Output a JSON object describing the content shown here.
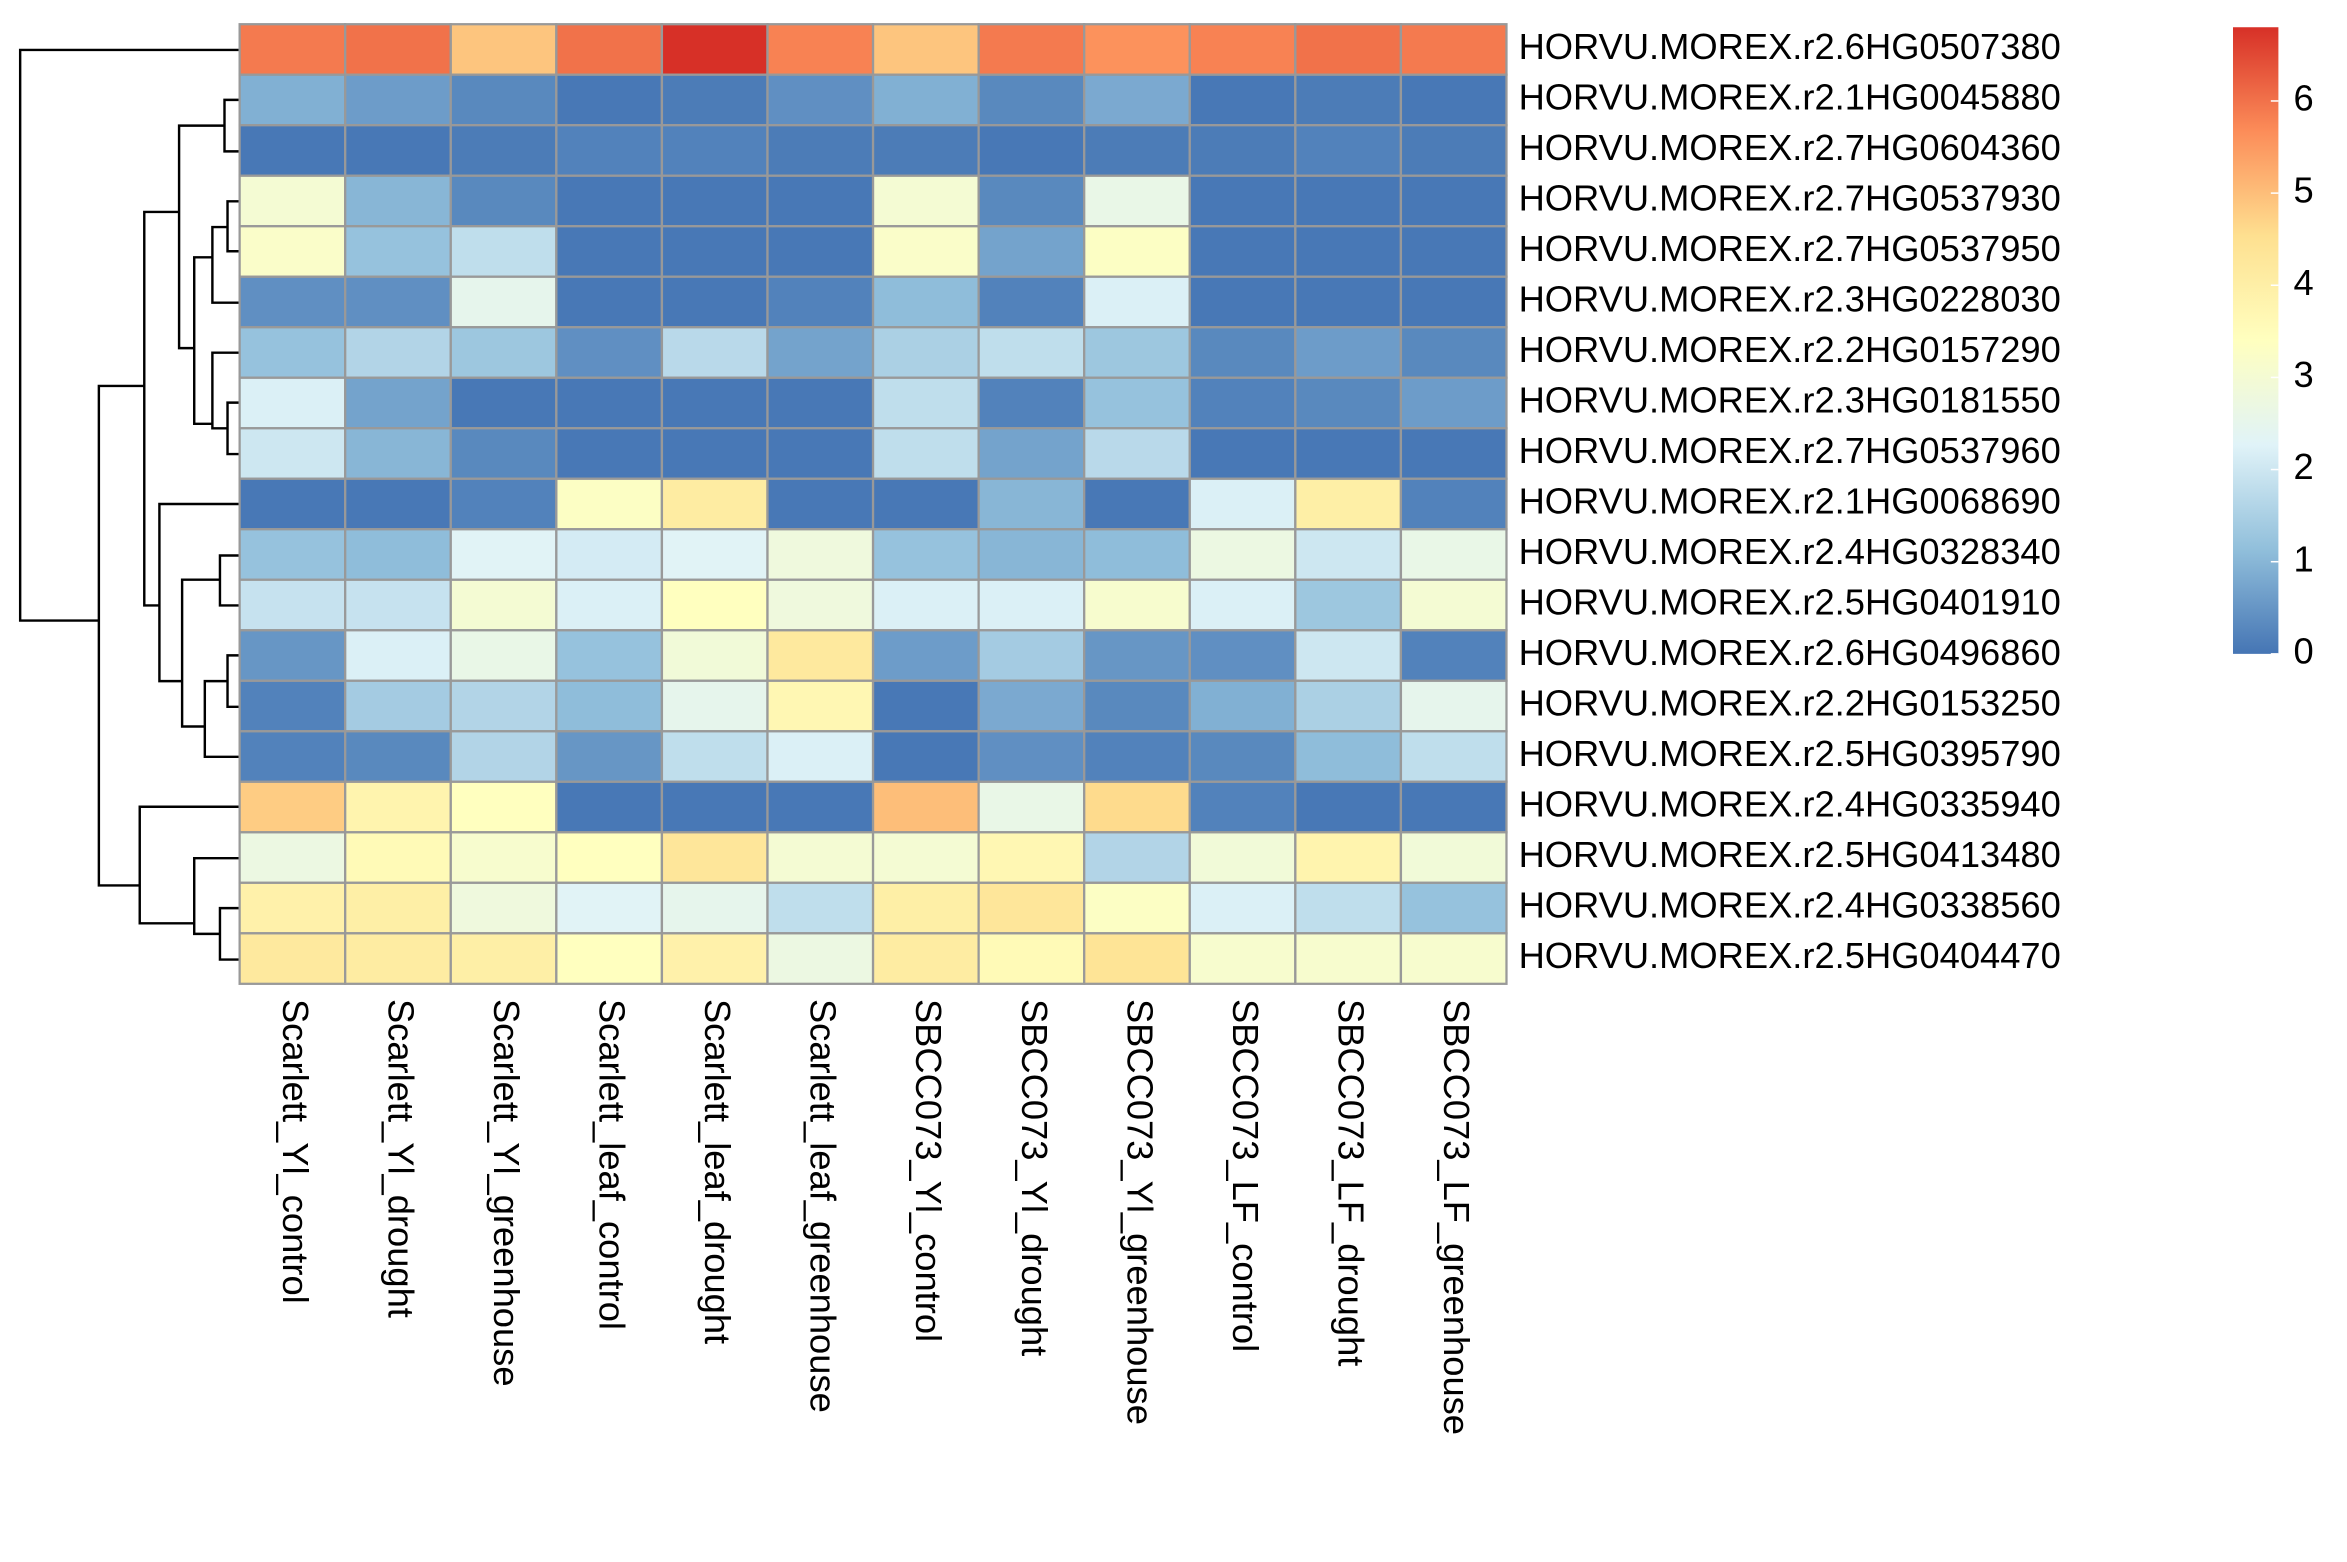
{
  "chart_data": {
    "type": "heatmap",
    "rows": [
      "HORVU.MOREX.r2.6HG0507380",
      "HORVU.MOREX.r2.1HG0045880",
      "HORVU.MOREX.r2.7HG0604360",
      "HORVU.MOREX.r2.7HG0537930",
      "HORVU.MOREX.r2.7HG0537950",
      "HORVU.MOREX.r2.3HG0228030",
      "HORVU.MOREX.r2.2HG0157290",
      "HORVU.MOREX.r2.3HG0181550",
      "HORVU.MOREX.r2.7HG0537960",
      "HORVU.MOREX.r2.1HG0068690",
      "HORVU.MOREX.r2.4HG0328340",
      "HORVU.MOREX.r2.5HG0401910",
      "HORVU.MOREX.r2.6HG0496860",
      "HORVU.MOREX.r2.2HG0153250",
      "HORVU.MOREX.r2.5HG0395790",
      "HORVU.MOREX.r2.4HG0335940",
      "HORVU.MOREX.r2.5HG0413480",
      "HORVU.MOREX.r2.4HG0338560",
      "HORVU.MOREX.r2.5HG0404470"
    ],
    "columns": [
      "Scarlett_Yl_control",
      "Scarlett_Yl_drought",
      "Scarlett_Yl_greenhouse",
      "Scarlett_leaf_control",
      "Scarlett_leaf_drought",
      "Scarlett_leaf_greenhouse",
      "SBCC073_Yl_control",
      "SBCC073_Yl_drought",
      "SBCC073_Yl_greenhouse",
      "SBCC073_LF_control",
      "SBCC073_LF_drought",
      "SBCC073_LF_greenhouse"
    ],
    "values": [
      [
        5.9,
        6.0,
        4.9,
        6.0,
        6.8,
        5.8,
        4.9,
        5.9,
        5.6,
        5.8,
        6.0,
        5.9
      ],
      [
        0.9,
        0.6,
        0.3,
        0.05,
        0.1,
        0.4,
        0.9,
        0.3,
        0.8,
        0.05,
        0.1,
        0.05
      ],
      [
        0.05,
        0.05,
        0.1,
        0.2,
        0.2,
        0.1,
        0.1,
        0.05,
        0.1,
        0.1,
        0.2,
        0.1
      ],
      [
        3.0,
        1.0,
        0.3,
        0.05,
        0.05,
        0.05,
        3.0,
        0.3,
        2.6,
        0.05,
        0.05,
        0.05
      ],
      [
        3.2,
        1.2,
        1.8,
        0.05,
        0.05,
        0.05,
        3.2,
        0.7,
        3.3,
        0.05,
        0.05,
        0.05
      ],
      [
        0.4,
        0.4,
        2.5,
        0.05,
        0.05,
        0.2,
        1.1,
        0.2,
        2.2,
        0.05,
        0.05,
        0.05
      ],
      [
        1.2,
        1.6,
        1.3,
        0.4,
        1.7,
        0.7,
        1.5,
        1.8,
        1.3,
        0.3,
        0.6,
        0.3
      ],
      [
        2.2,
        0.7,
        0.05,
        0.05,
        0.05,
        0.05,
        1.8,
        0.2,
        1.2,
        0.2,
        0.3,
        0.6
      ],
      [
        2.0,
        1.0,
        0.3,
        0.05,
        0.05,
        0.05,
        1.8,
        0.7,
        1.7,
        0.05,
        0.05,
        0.05
      ],
      [
        0.05,
        0.05,
        0.2,
        3.3,
        4.1,
        0.05,
        0.05,
        1.0,
        0.05,
        2.2,
        4.0,
        0.2
      ],
      [
        1.2,
        1.1,
        2.3,
        2.1,
        2.3,
        2.8,
        1.2,
        1.0,
        1.1,
        2.7,
        2.0,
        2.6
      ],
      [
        1.9,
        1.9,
        3.0,
        2.2,
        3.4,
        2.8,
        2.2,
        2.2,
        3.1,
        2.2,
        1.3,
        3.0
      ],
      [
        0.5,
        2.2,
        2.6,
        1.2,
        2.9,
        4.2,
        0.6,
        1.4,
        0.5,
        0.4,
        2.0,
        0.2
      ],
      [
        0.2,
        1.4,
        1.6,
        1.1,
        2.5,
        3.7,
        0.05,
        0.8,
        0.3,
        0.9,
        1.5,
        2.5
      ],
      [
        0.2,
        0.3,
        1.6,
        0.5,
        1.8,
        2.2,
        0.05,
        0.4,
        0.2,
        0.3,
        1.1,
        1.8
      ],
      [
        4.8,
        3.8,
        3.4,
        0.05,
        0.05,
        0.05,
        5.0,
        2.6,
        4.6,
        0.2,
        0.05,
        0.05
      ],
      [
        2.7,
        3.6,
        3.1,
        3.4,
        4.3,
        3.0,
        3.0,
        3.7,
        1.6,
        2.9,
        3.8,
        2.9
      ],
      [
        3.9,
        4.0,
        2.8,
        2.3,
        2.5,
        1.8,
        4.0,
        4.3,
        3.3,
        2.2,
        1.8,
        1.2
      ],
      [
        4.2,
        4.1,
        4.0,
        3.4,
        3.9,
        2.7,
        4.1,
        3.6,
        4.4,
        3.1,
        3.1,
        3.1
      ]
    ],
    "colors": [
      "#4575B4",
      "#91BFDB",
      "#E0F3F8",
      "#FFFFBF",
      "#FEE090",
      "#FC8D59",
      "#D73027"
    ],
    "zlim": [
      0,
      6.8
    ],
    "zticks": [
      0,
      1,
      2,
      3,
      4,
      5,
      6
    ]
  }
}
